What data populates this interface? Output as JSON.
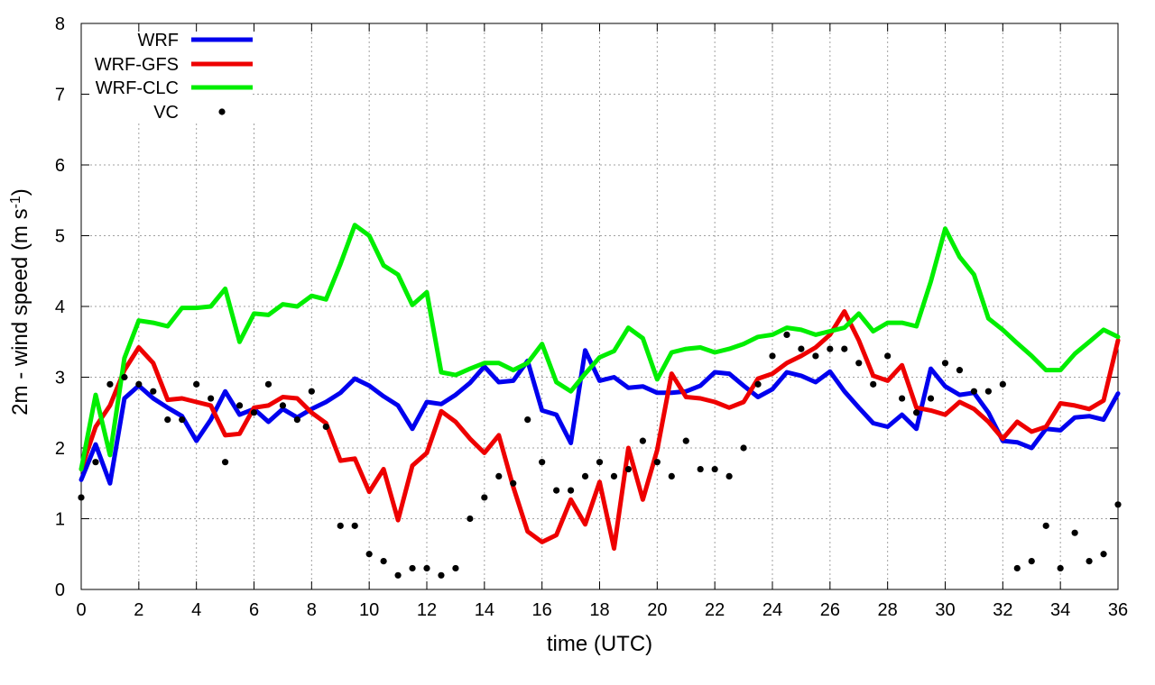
{
  "chart_data": {
    "type": "line",
    "xlabel": "time (UTC)",
    "ylabel": {
      "main": "2m - wind speed  (m s",
      "sup": "-1",
      "close": ")"
    },
    "xlim": [
      0,
      36
    ],
    "ylim": [
      0,
      8
    ],
    "xticks": [
      0,
      2,
      4,
      6,
      8,
      10,
      12,
      14,
      16,
      18,
      20,
      22,
      24,
      26,
      28,
      30,
      32,
      34,
      36
    ],
    "yticks": [
      0,
      1,
      2,
      3,
      4,
      5,
      6,
      7,
      8
    ],
    "grid": true,
    "legend_position": "top-left",
    "x": [
      0,
      0.5,
      1,
      1.5,
      2,
      2.5,
      3,
      3.5,
      4,
      4.5,
      5,
      5.5,
      6,
      6.5,
      7,
      7.5,
      8,
      8.5,
      9,
      9.5,
      10,
      10.5,
      11,
      11.5,
      12,
      12.5,
      13,
      13.5,
      14,
      14.5,
      15,
      15.5,
      16,
      16.5,
      17,
      17.5,
      18,
      18.5,
      19,
      19.5,
      20,
      20.5,
      21,
      21.5,
      22,
      22.5,
      23,
      23.5,
      24,
      24.5,
      25,
      25.5,
      26,
      26.5,
      27,
      27.5,
      28,
      28.5,
      29,
      29.5,
      30,
      30.5,
      31,
      31.5,
      32,
      32.5,
      33,
      33.5,
      34,
      34.5,
      35,
      35.5,
      36
    ],
    "series": [
      {
        "name": "WRF",
        "color": "#0000ee",
        "style": "line",
        "values": [
          1.55,
          2.05,
          1.5,
          2.7,
          2.88,
          2.7,
          2.57,
          2.45,
          2.1,
          2.4,
          2.8,
          2.47,
          2.55,
          2.37,
          2.55,
          2.43,
          2.55,
          2.65,
          2.78,
          2.98,
          2.88,
          2.73,
          2.6,
          2.27,
          2.65,
          2.62,
          2.75,
          2.92,
          3.15,
          2.93,
          2.95,
          3.23,
          2.53,
          2.47,
          2.07,
          3.38,
          2.95,
          3.0,
          2.85,
          2.87,
          2.78,
          2.78,
          2.8,
          2.88,
          3.07,
          3.05,
          2.88,
          2.72,
          2.83,
          3.07,
          3.02,
          2.93,
          3.08,
          2.8,
          2.57,
          2.35,
          2.3,
          2.47,
          2.27,
          3.12,
          2.87,
          2.75,
          2.78,
          2.5,
          2.1,
          2.08,
          2.0,
          2.27,
          2.25,
          2.43,
          2.45,
          2.4,
          2.77
        ]
      },
      {
        "name": "WRF-GFS",
        "color": "#ee0000",
        "style": "line",
        "values": [
          1.7,
          2.3,
          2.6,
          3.1,
          3.42,
          3.2,
          2.68,
          2.7,
          2.65,
          2.6,
          2.18,
          2.2,
          2.57,
          2.6,
          2.72,
          2.7,
          2.5,
          2.35,
          1.82,
          1.85,
          1.38,
          1.7,
          0.98,
          1.75,
          1.93,
          2.52,
          2.37,
          2.13,
          1.93,
          2.18,
          1.45,
          0.82,
          0.67,
          0.77,
          1.27,
          0.92,
          1.52,
          0.58,
          2.0,
          1.27,
          1.97,
          3.05,
          2.72,
          2.7,
          2.65,
          2.57,
          2.65,
          2.98,
          3.05,
          3.2,
          3.3,
          3.42,
          3.6,
          3.93,
          3.52,
          3.02,
          2.95,
          3.17,
          2.57,
          2.53,
          2.47,
          2.65,
          2.55,
          2.37,
          2.13,
          2.37,
          2.23,
          2.3,
          2.63,
          2.6,
          2.55,
          2.67,
          3.52
        ]
      },
      {
        "name": "WRF-CLC",
        "color": "#00ee00",
        "style": "line",
        "values": [
          1.7,
          2.75,
          1.9,
          3.27,
          3.8,
          3.77,
          3.72,
          3.98,
          3.98,
          4.0,
          4.25,
          3.5,
          3.9,
          3.88,
          4.03,
          4.0,
          4.15,
          4.1,
          4.6,
          5.15,
          5.0,
          4.58,
          4.45,
          4.02,
          4.2,
          3.07,
          3.03,
          3.12,
          3.2,
          3.2,
          3.1,
          3.2,
          3.47,
          2.93,
          2.8,
          3.05,
          3.28,
          3.37,
          3.7,
          3.55,
          2.97,
          3.35,
          3.4,
          3.42,
          3.35,
          3.4,
          3.47,
          3.57,
          3.6,
          3.7,
          3.67,
          3.6,
          3.65,
          3.7,
          3.9,
          3.65,
          3.77,
          3.77,
          3.72,
          4.35,
          5.1,
          4.7,
          4.45,
          3.83,
          3.67,
          3.48,
          3.3,
          3.1,
          3.1,
          3.33,
          3.5,
          3.67,
          3.57
        ]
      },
      {
        "name": "VC",
        "color": "#000000",
        "style": "points",
        "values": [
          1.3,
          1.8,
          2.9,
          3.0,
          2.9,
          2.8,
          2.4,
          2.4,
          2.9,
          2.7,
          1.8,
          2.6,
          2.5,
          2.9,
          2.6,
          2.4,
          2.8,
          2.3,
          0.9,
          0.9,
          0.5,
          0.4,
          0.2,
          0.3,
          0.3,
          0.2,
          0.3,
          1.0,
          1.3,
          1.6,
          1.5,
          2.4,
          1.8,
          1.4,
          1.4,
          1.6,
          1.8,
          1.6,
          1.7,
          2.1,
          1.8,
          1.6,
          2.1,
          1.7,
          1.7,
          1.6,
          2.0,
          2.9,
          3.3,
          3.6,
          3.4,
          3.3,
          3.4,
          3.4,
          3.2,
          2.9,
          3.3,
          2.7,
          2.5,
          2.7,
          3.2,
          3.1,
          2.8,
          2.8,
          2.9,
          0.3,
          0.4,
          0.9,
          0.3,
          0.8,
          0.4,
          0.5,
          1.2
        ]
      }
    ]
  }
}
